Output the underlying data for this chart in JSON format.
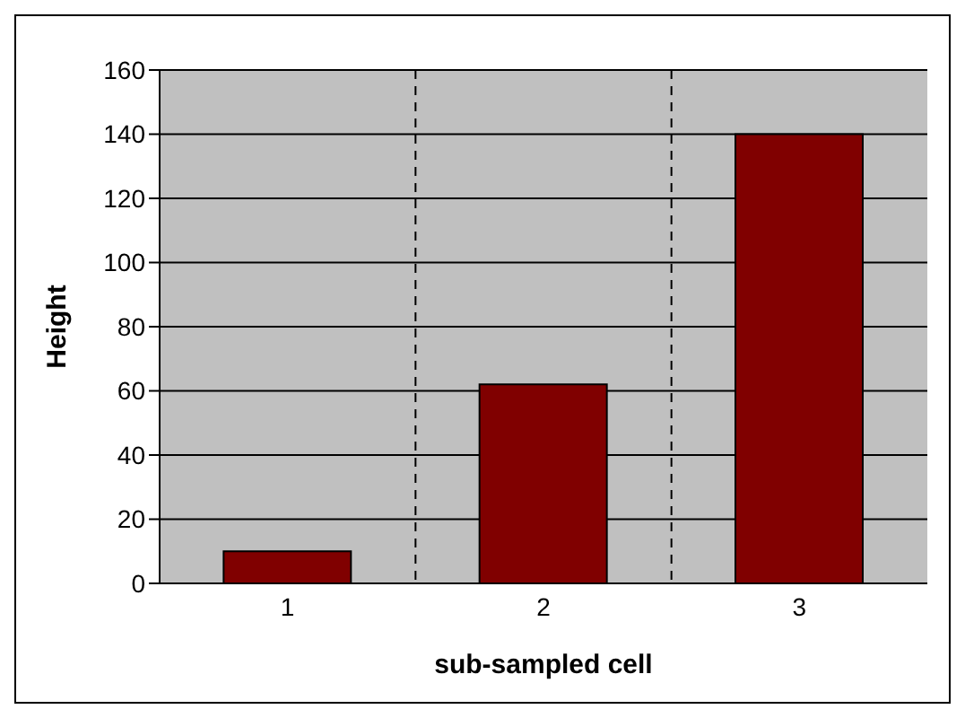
{
  "chart_data": {
    "type": "bar",
    "xlabel": "sub-sampled cell",
    "ylabel": "Height",
    "categories": [
      "1",
      "2",
      "3"
    ],
    "values": [
      10,
      62,
      140
    ],
    "color": "#800000",
    "ylim": [
      0,
      160
    ],
    "yticks": [
      0,
      20,
      40,
      60,
      80,
      100,
      120,
      140,
      160
    ],
    "grid": true
  }
}
